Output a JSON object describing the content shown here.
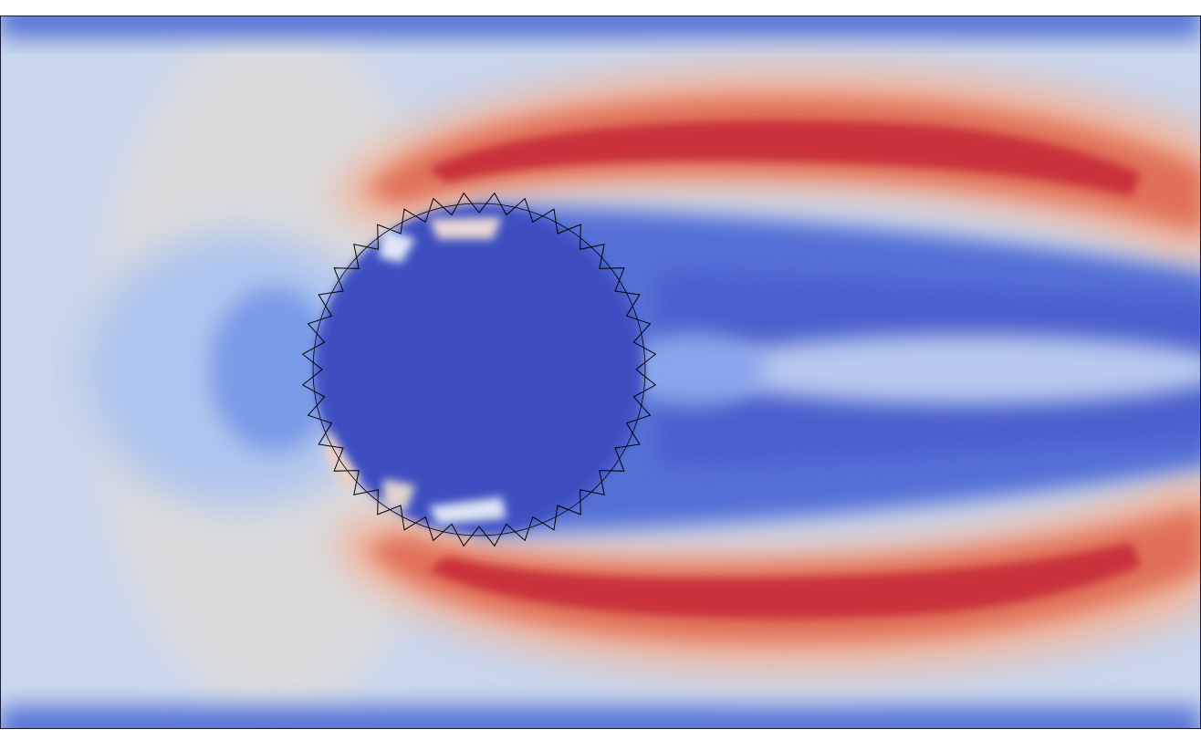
{
  "view": {
    "description_free": true
  },
  "colormap": {
    "name": "coolwarm",
    "low": "#3b4cc0",
    "mid": "#dddcdc",
    "high": "#c81f31",
    "background": "#ffffff",
    "frame": "#1a1a3a"
  },
  "scalar_field": {
    "freestream_level": 0.45,
    "obstacle_level": 0.0,
    "shear_layer_peak": 1.0,
    "wake_centerline_level": 0.33
  },
  "obstacle": {
    "shape": "circle",
    "boundary_markers": 36,
    "marker_color": "#000000"
  }
}
